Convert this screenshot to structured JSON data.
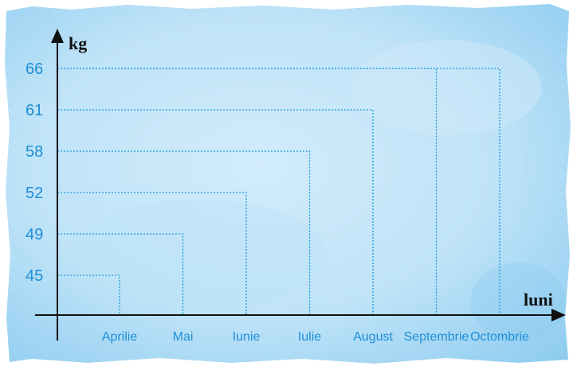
{
  "chart_data": {
    "type": "line",
    "title": "",
    "xlabel": "luni",
    "ylabel": "kg",
    "categories": [
      "Aprilie",
      "Mai",
      "Iunie",
      "Iulie",
      "August",
      "Septembrie",
      "Octombrie"
    ],
    "values": [
      45,
      49,
      52,
      58,
      61,
      66,
      66
    ],
    "yticks": [
      45,
      49,
      52,
      58,
      61,
      66
    ],
    "grid": false,
    "style": "dotted drop lines from each axis value to its month",
    "colors": {
      "ticks": "#1f8fd6",
      "guides": "#1a9ad9",
      "axis": "#111111",
      "paper": "#9fd3f2"
    }
  }
}
